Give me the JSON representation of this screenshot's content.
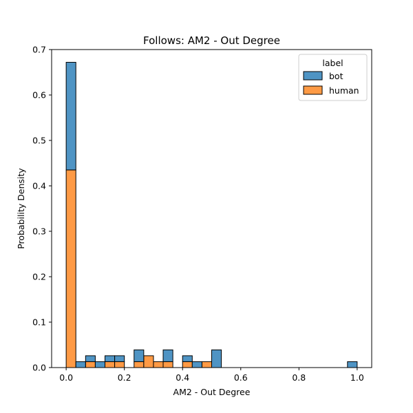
{
  "chart_data": {
    "type": "bar",
    "stacked": true,
    "title": "Follows: AM2 - Out Degree",
    "xlabel": "AM2 - Out Degree",
    "ylabel": "Probability Density",
    "xlim": [
      -0.05,
      1.05
    ],
    "ylim": [
      0,
      0.7
    ],
    "xticks": [
      0.0,
      0.2,
      0.4,
      0.6,
      0.8,
      1.0
    ],
    "xtick_labels": [
      "0.0",
      "0.2",
      "0.4",
      "0.6",
      "0.8",
      "1.0"
    ],
    "yticks": [
      0.0,
      0.1,
      0.2,
      0.3,
      0.4,
      0.5,
      0.6,
      0.7
    ],
    "ytick_labels": [
      "0.0",
      "0.1",
      "0.2",
      "0.3",
      "0.4",
      "0.5",
      "0.6",
      "0.7"
    ],
    "bin_width": 0.0333,
    "bin_starts": [
      0.0,
      0.0333,
      0.0667,
      0.1,
      0.1333,
      0.1667,
      0.2,
      0.2333,
      0.2667,
      0.3,
      0.3333,
      0.3667,
      0.4,
      0.4333,
      0.4667,
      0.5,
      0.5333,
      0.5667,
      0.6,
      0.6333,
      0.6667,
      0.7,
      0.7333,
      0.7667,
      0.8,
      0.8333,
      0.8667,
      0.9,
      0.9333,
      0.9667
    ],
    "legend_title": "label",
    "legend_position": "top-right",
    "grid": false,
    "series": [
      {
        "name": "human",
        "color": "#fe9a45",
        "values": [
          0.435,
          0.0,
          0.013,
          0.0,
          0.013,
          0.013,
          0.0,
          0.013,
          0.026,
          0.013,
          0.013,
          0.0,
          0.013,
          0.0,
          0.013,
          0.0,
          0,
          0,
          0,
          0,
          0,
          0,
          0,
          0,
          0,
          0,
          0,
          0,
          0,
          0
        ]
      },
      {
        "name": "bot",
        "color": "#4f94c4",
        "values": [
          0.237,
          0.013,
          0.013,
          0.013,
          0.013,
          0.013,
          0.0,
          0.026,
          0.0,
          0.0,
          0.026,
          0.0,
          0.013,
          0.013,
          0.0,
          0.039,
          0,
          0,
          0,
          0,
          0,
          0,
          0,
          0,
          0,
          0,
          0,
          0,
          0,
          0.013
        ]
      }
    ]
  }
}
